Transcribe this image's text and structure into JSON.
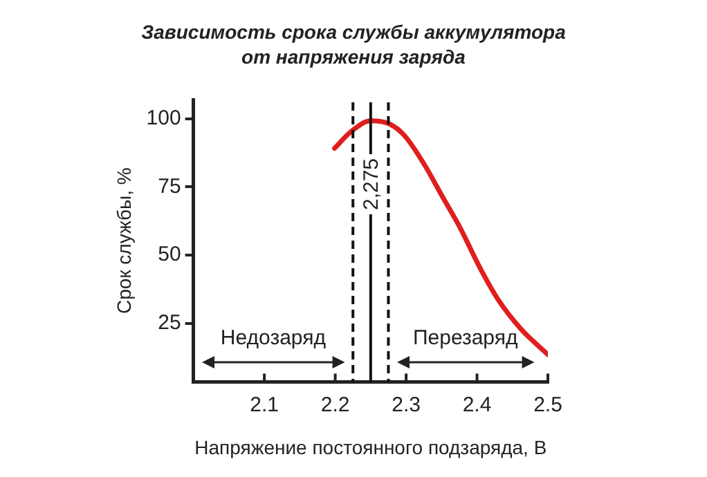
{
  "chart_data": {
    "type": "line",
    "title": "Зависимость срока службы аккумулятора от напряжения заряда",
    "xlabel": "Напряжение постоянного подзаряда, В",
    "ylabel": "Срок службы, %",
    "x": [
      2.199,
      2.223,
      2.25,
      2.277,
      2.298,
      2.325,
      2.351,
      2.377,
      2.403,
      2.429,
      2.462,
      2.5
    ],
    "series": [
      {
        "color": "#e01e1e",
        "values": [
          89.1,
          95.4,
          99.2,
          98,
          93.7,
          83.5,
          71.5,
          59.6,
          45.9,
          34,
          22.9,
          13.5
        ]
      }
    ],
    "xlim": [
      2.0,
      2.5
    ],
    "xticks": [
      2.1,
      2.2,
      2.3,
      2.4,
      2.5
    ],
    "ylim": [
      3.5,
      107
    ],
    "yticks": [
      25,
      50,
      75,
      100
    ],
    "grid": false,
    "legend": false,
    "marker": "none",
    "line_style": "solid",
    "ref_lines": [
      {
        "axis": "x",
        "value": 2.225,
        "line_style": "dashed"
      },
      {
        "axis": "x",
        "value": 2.25,
        "line_style": "solid"
      },
      {
        "axis": "x",
        "value": 2.275,
        "line_style": "dashed"
      }
    ],
    "annotations": [
      "Недозаряд",
      "Перезаряд",
      "2,275"
    ]
  }
}
